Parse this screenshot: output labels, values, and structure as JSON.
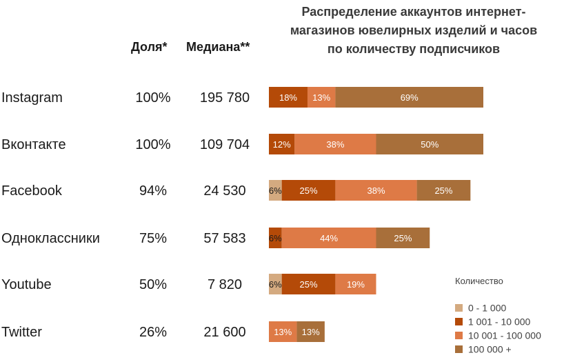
{
  "headers": {
    "share": "Доля*",
    "median": "Медиана**"
  },
  "chart_data": {
    "type": "bar",
    "orientation": "horizontal",
    "stacked": true,
    "title": "Распределение аккаунтов интернет-магазинов ювелирных изделий и часов по количеству подписчиков",
    "title_lines": [
      "Распределение аккаунтов интернет-",
      "магазинов ювелирных изделий и часов",
      "по количеству подписчиков"
    ],
    "categories": [
      "Instagram",
      "Вконтакте",
      "Facebook",
      "Одноклассники",
      "Youtube",
      "Twitter"
    ],
    "share": [
      "100%",
      "100%",
      "94%",
      "75%",
      "50%",
      "26%"
    ],
    "median": [
      "195 780",
      "109 704",
      "24 530",
      "57 583",
      "7 820",
      "21 600"
    ],
    "legend_title": "Количество",
    "legend_position": "bottom-right",
    "series": [
      {
        "name": "0 - 1 000",
        "color": "#d4aa80",
        "values": [
          0,
          0,
          6,
          0,
          6,
          0
        ]
      },
      {
        "name": "1 001 - 10 000",
        "color": "#b44a08",
        "values": [
          18,
          12,
          25,
          6,
          25,
          0
        ]
      },
      {
        "name": "10 001 - 100 000",
        "color": "#de7a46",
        "values": [
          13,
          38,
          38,
          44,
          19,
          13
        ]
      },
      {
        "name": "100 000 +",
        "color": "#a86f3a",
        "values": [
          69,
          50,
          25,
          25,
          0,
          13
        ]
      }
    ]
  }
}
